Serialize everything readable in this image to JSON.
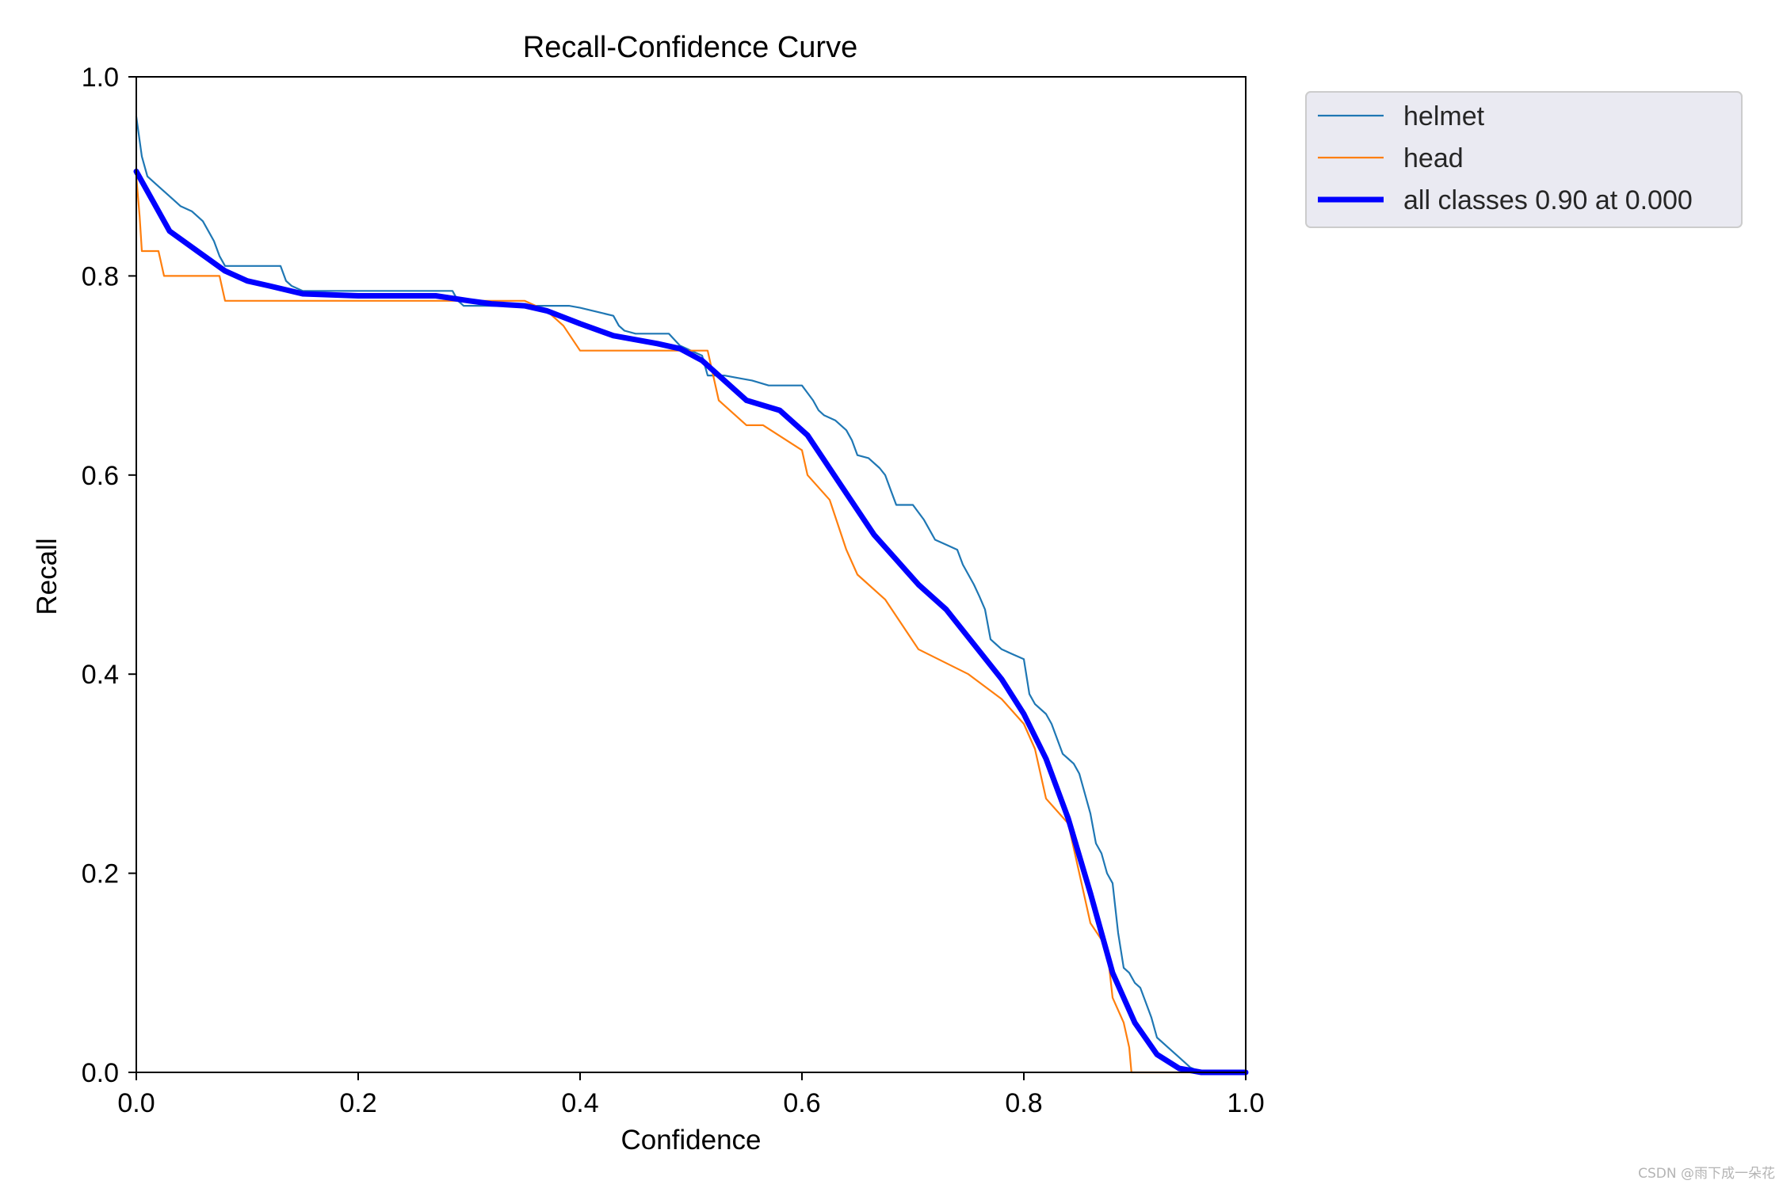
{
  "chart_data": {
    "type": "line",
    "title": "Recall-Confidence Curve",
    "xlabel": "Confidence",
    "ylabel": "Recall",
    "xlim": [
      0,
      1
    ],
    "ylim": [
      0,
      1
    ],
    "xticks": [
      "0.0",
      "0.2",
      "0.4",
      "0.6",
      "0.8",
      "1.0"
    ],
    "yticks": [
      "0.0",
      "0.2",
      "0.4",
      "0.6",
      "0.8",
      "1.0"
    ],
    "grid": false,
    "legend_position": "outside top-right",
    "series": [
      {
        "name": "helmet",
        "color": "#1f77b4",
        "points": [
          [
            0.0,
            0.96
          ],
          [
            0.005,
            0.92
          ],
          [
            0.01,
            0.9
          ],
          [
            0.02,
            0.89
          ],
          [
            0.03,
            0.88
          ],
          [
            0.04,
            0.87
          ],
          [
            0.05,
            0.865
          ],
          [
            0.06,
            0.855
          ],
          [
            0.065,
            0.845
          ],
          [
            0.07,
            0.835
          ],
          [
            0.075,
            0.82
          ],
          [
            0.08,
            0.81
          ],
          [
            0.13,
            0.81
          ],
          [
            0.135,
            0.795
          ],
          [
            0.14,
            0.79
          ],
          [
            0.15,
            0.785
          ],
          [
            0.2,
            0.785
          ],
          [
            0.25,
            0.785
          ],
          [
            0.285,
            0.785
          ],
          [
            0.29,
            0.775
          ],
          [
            0.295,
            0.77
          ],
          [
            0.32,
            0.77
          ],
          [
            0.35,
            0.77
          ],
          [
            0.39,
            0.77
          ],
          [
            0.4,
            0.768
          ],
          [
            0.43,
            0.76
          ],
          [
            0.435,
            0.75
          ],
          [
            0.44,
            0.745
          ],
          [
            0.45,
            0.742
          ],
          [
            0.48,
            0.742
          ],
          [
            0.49,
            0.73
          ],
          [
            0.5,
            0.725
          ],
          [
            0.51,
            0.72
          ],
          [
            0.515,
            0.7
          ],
          [
            0.53,
            0.7
          ],
          [
            0.545,
            0.697
          ],
          [
            0.555,
            0.695
          ],
          [
            0.57,
            0.69
          ],
          [
            0.6,
            0.69
          ],
          [
            0.61,
            0.675
          ],
          [
            0.615,
            0.665
          ],
          [
            0.62,
            0.66
          ],
          [
            0.63,
            0.655
          ],
          [
            0.64,
            0.645
          ],
          [
            0.645,
            0.635
          ],
          [
            0.65,
            0.62
          ],
          [
            0.66,
            0.617
          ],
          [
            0.67,
            0.607
          ],
          [
            0.675,
            0.6
          ],
          [
            0.68,
            0.585
          ],
          [
            0.685,
            0.57
          ],
          [
            0.7,
            0.57
          ],
          [
            0.71,
            0.555
          ],
          [
            0.715,
            0.545
          ],
          [
            0.72,
            0.535
          ],
          [
            0.73,
            0.53
          ],
          [
            0.74,
            0.525
          ],
          [
            0.745,
            0.51
          ],
          [
            0.75,
            0.5
          ],
          [
            0.755,
            0.49
          ],
          [
            0.76,
            0.478
          ],
          [
            0.765,
            0.465
          ],
          [
            0.77,
            0.435
          ],
          [
            0.775,
            0.43
          ],
          [
            0.78,
            0.425
          ],
          [
            0.79,
            0.42
          ],
          [
            0.8,
            0.415
          ],
          [
            0.805,
            0.38
          ],
          [
            0.81,
            0.37
          ],
          [
            0.82,
            0.36
          ],
          [
            0.825,
            0.35
          ],
          [
            0.83,
            0.335
          ],
          [
            0.835,
            0.32
          ],
          [
            0.84,
            0.315
          ],
          [
            0.845,
            0.31
          ],
          [
            0.85,
            0.3
          ],
          [
            0.855,
            0.28
          ],
          [
            0.86,
            0.26
          ],
          [
            0.865,
            0.23
          ],
          [
            0.87,
            0.22
          ],
          [
            0.875,
            0.2
          ],
          [
            0.88,
            0.19
          ],
          [
            0.885,
            0.14
          ],
          [
            0.89,
            0.105
          ],
          [
            0.895,
            0.1
          ],
          [
            0.9,
            0.09
          ],
          [
            0.905,
            0.085
          ],
          [
            0.91,
            0.07
          ],
          [
            0.915,
            0.055
          ],
          [
            0.92,
            0.035
          ],
          [
            0.93,
            0.025
          ],
          [
            0.94,
            0.015
          ],
          [
            0.95,
            0.005
          ],
          [
            0.96,
            0.0
          ],
          [
            1.0,
            0.0
          ]
        ]
      },
      {
        "name": "head",
        "color": "#ff7f0e",
        "points": [
          [
            0.0,
            0.9
          ],
          [
            0.003,
            0.86
          ],
          [
            0.005,
            0.825
          ],
          [
            0.02,
            0.825
          ],
          [
            0.025,
            0.8
          ],
          [
            0.05,
            0.8
          ],
          [
            0.075,
            0.8
          ],
          [
            0.08,
            0.775
          ],
          [
            0.1,
            0.775
          ],
          [
            0.2,
            0.775
          ],
          [
            0.3,
            0.775
          ],
          [
            0.35,
            0.775
          ],
          [
            0.37,
            0.765
          ],
          [
            0.385,
            0.75
          ],
          [
            0.4,
            0.725
          ],
          [
            0.45,
            0.725
          ],
          [
            0.515,
            0.725
          ],
          [
            0.525,
            0.675
          ],
          [
            0.55,
            0.65
          ],
          [
            0.565,
            0.65
          ],
          [
            0.6,
            0.625
          ],
          [
            0.605,
            0.6
          ],
          [
            0.625,
            0.575
          ],
          [
            0.64,
            0.525
          ],
          [
            0.65,
            0.5
          ],
          [
            0.675,
            0.475
          ],
          [
            0.69,
            0.45
          ],
          [
            0.705,
            0.425
          ],
          [
            0.75,
            0.4
          ],
          [
            0.78,
            0.375
          ],
          [
            0.8,
            0.35
          ],
          [
            0.81,
            0.325
          ],
          [
            0.815,
            0.3
          ],
          [
            0.82,
            0.275
          ],
          [
            0.84,
            0.25
          ],
          [
            0.85,
            0.2
          ],
          [
            0.86,
            0.15
          ],
          [
            0.875,
            0.125
          ],
          [
            0.88,
            0.075
          ],
          [
            0.89,
            0.05
          ],
          [
            0.895,
            0.025
          ],
          [
            0.897,
            0.0
          ],
          [
            1.0,
            0.0
          ]
        ]
      },
      {
        "name": "all classes 0.90 at 0.000",
        "color": "#0000ff",
        "points": [
          [
            0.0,
            0.905
          ],
          [
            0.015,
            0.875
          ],
          [
            0.03,
            0.845
          ],
          [
            0.055,
            0.825
          ],
          [
            0.08,
            0.805
          ],
          [
            0.1,
            0.795
          ],
          [
            0.12,
            0.79
          ],
          [
            0.15,
            0.782
          ],
          [
            0.2,
            0.78
          ],
          [
            0.27,
            0.78
          ],
          [
            0.3,
            0.775
          ],
          [
            0.32,
            0.772
          ],
          [
            0.35,
            0.77
          ],
          [
            0.37,
            0.765
          ],
          [
            0.4,
            0.752
          ],
          [
            0.43,
            0.74
          ],
          [
            0.47,
            0.732
          ],
          [
            0.49,
            0.727
          ],
          [
            0.51,
            0.715
          ],
          [
            0.53,
            0.695
          ],
          [
            0.55,
            0.675
          ],
          [
            0.58,
            0.665
          ],
          [
            0.605,
            0.64
          ],
          [
            0.62,
            0.615
          ],
          [
            0.635,
            0.59
          ],
          [
            0.65,
            0.565
          ],
          [
            0.665,
            0.54
          ],
          [
            0.685,
            0.515
          ],
          [
            0.705,
            0.49
          ],
          [
            0.73,
            0.465
          ],
          [
            0.755,
            0.43
          ],
          [
            0.78,
            0.395
          ],
          [
            0.8,
            0.36
          ],
          [
            0.82,
            0.315
          ],
          [
            0.84,
            0.255
          ],
          [
            0.86,
            0.18
          ],
          [
            0.88,
            0.1
          ],
          [
            0.9,
            0.05
          ],
          [
            0.92,
            0.018
          ],
          [
            0.94,
            0.004
          ],
          [
            0.96,
            0.0
          ],
          [
            1.0,
            0.0
          ]
        ]
      }
    ]
  },
  "watermark": "CSDN @雨下成一朵花"
}
